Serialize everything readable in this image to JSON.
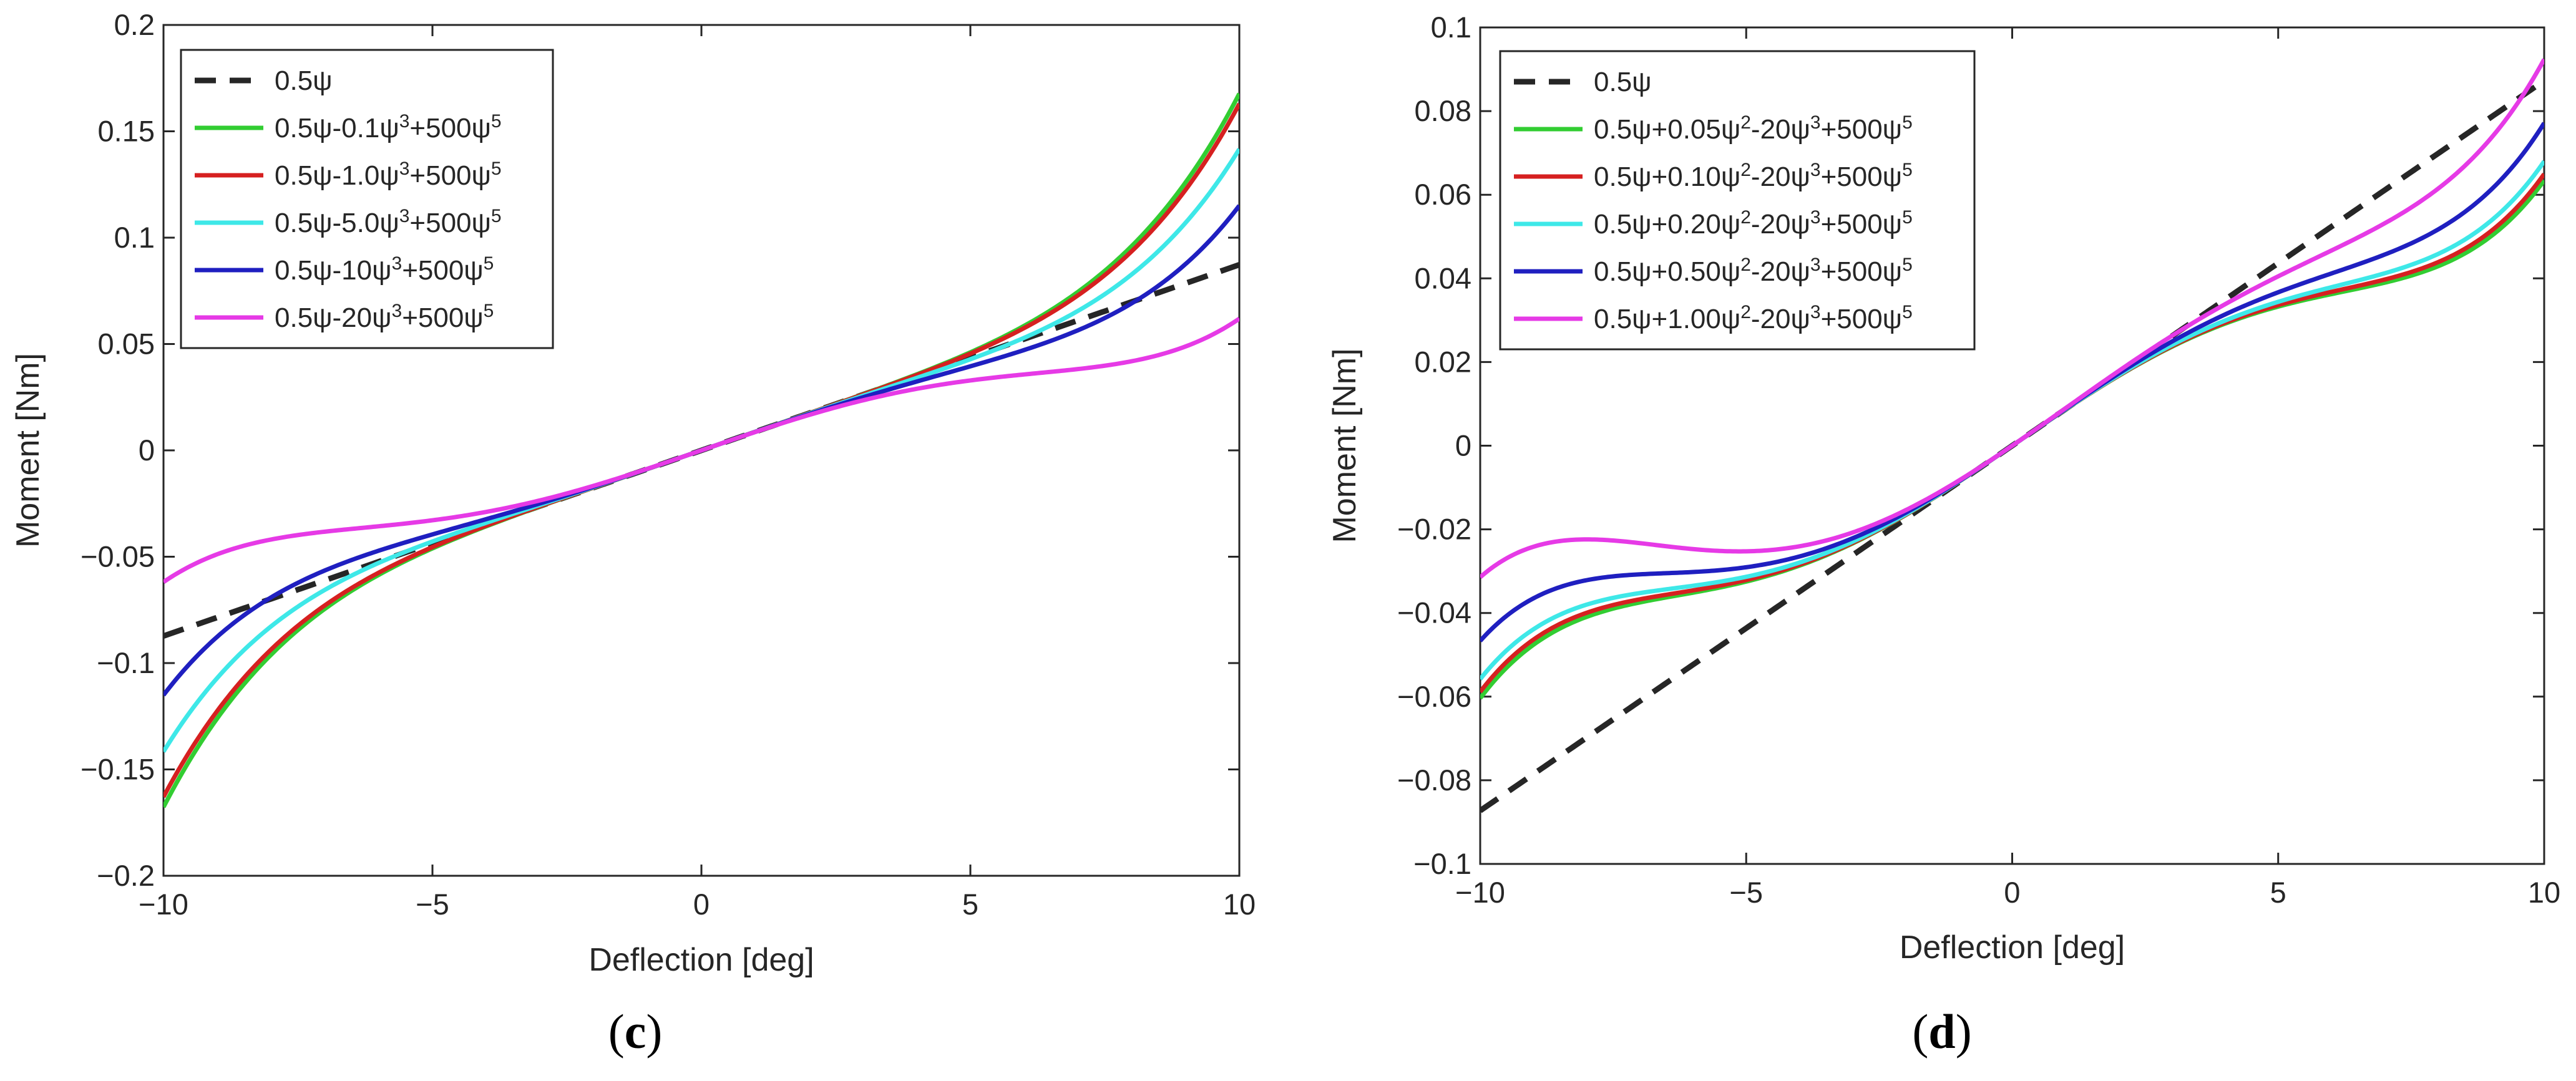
{
  "chart_data": [
    {
      "type": "line",
      "panel_label": "c",
      "xlabel": "Deflection [deg]",
      "ylabel": "Moment [Nm]",
      "xlim": [
        -10,
        10
      ],
      "ylim": [
        -0.2,
        0.2
      ],
      "xticks": [
        -10,
        -5,
        0,
        5,
        10
      ],
      "xtick_labels": [
        "−10",
        "−5",
        "0",
        "5",
        "10"
      ],
      "yticks": [
        -0.2,
        -0.15,
        -0.1,
        -0.05,
        0,
        0.05,
        0.1,
        0.15,
        0.2
      ],
      "ytick_labels": [
        "−0.2",
        "−0.15",
        "−0.1",
        "−0.05",
        "0",
        "0.05",
        "0.1",
        "0.15",
        "0.2"
      ],
      "legend_position": "top-left",
      "series": [
        {
          "name": "0.5ψ",
          "label_parts": [
            "0.5ψ"
          ],
          "color": "#262626",
          "dashed": true,
          "a": 0.5,
          "b": 0,
          "c": 0,
          "d": 0
        },
        {
          "name": "0.5ψ-0.1ψ^3+500ψ^5",
          "label_parts": [
            "0.5ψ-0.1ψ",
            "3",
            "+500ψ",
            "5"
          ],
          "color": "#32cd32",
          "dashed": false,
          "a": 0.5,
          "b": 0,
          "c": -0.1,
          "d": 500
        },
        {
          "name": "0.5ψ-1.0ψ^3+500ψ^5",
          "label_parts": [
            "0.5ψ-1.0ψ",
            "3",
            "+500ψ",
            "5"
          ],
          "color": "#d62020",
          "dashed": false,
          "a": 0.5,
          "b": 0,
          "c": -1.0,
          "d": 500
        },
        {
          "name": "0.5ψ-5.0ψ^3+500ψ^5",
          "label_parts": [
            "0.5ψ-5.0ψ",
            "3",
            "+500ψ",
            "5"
          ],
          "color": "#3ee8e8",
          "dashed": false,
          "a": 0.5,
          "b": 0,
          "c": -5.0,
          "d": 500
        },
        {
          "name": "0.5ψ-10ψ^3+500ψ^5",
          "label_parts": [
            "0.5ψ-10ψ",
            "3",
            "+500ψ",
            "5"
          ],
          "color": "#1f1fc0",
          "dashed": false,
          "a": 0.5,
          "b": 0,
          "c": -10,
          "d": 500
        },
        {
          "name": "0.5ψ-20ψ^3+500ψ^5",
          "label_parts": [
            "0.5ψ-20ψ",
            "3",
            "+500ψ",
            "5"
          ],
          "color": "#e63ae6",
          "dashed": false,
          "a": 0.5,
          "b": 0,
          "c": -20,
          "d": 500
        }
      ]
    },
    {
      "type": "line",
      "panel_label": "d",
      "xlabel": "Deflection [deg]",
      "ylabel": "Moment [Nm]",
      "xlim": [
        -10,
        10
      ],
      "ylim": [
        -0.1,
        0.1
      ],
      "xticks": [
        -10,
        -5,
        0,
        5,
        10
      ],
      "xtick_labels": [
        "−10",
        "−5",
        "0",
        "5",
        "10"
      ],
      "yticks": [
        -0.1,
        -0.08,
        -0.06,
        -0.04,
        -0.02,
        0,
        0.02,
        0.04,
        0.06,
        0.08,
        0.1
      ],
      "ytick_labels": [
        "−0.1",
        "−0.08",
        "−0.06",
        "−0.04",
        "−0.02",
        "0",
        "0.02",
        "0.04",
        "0.06",
        "0.08",
        "0.1"
      ],
      "legend_position": "top-left",
      "series": [
        {
          "name": "0.5ψ",
          "label_parts": [
            "0.5ψ"
          ],
          "color": "#262626",
          "dashed": true,
          "a": 0.5,
          "b": 0,
          "c": 0,
          "d": 0
        },
        {
          "name": "0.5ψ+0.05ψ^2-20ψ^3+500ψ^5",
          "label_parts": [
            "0.5ψ+0.05ψ",
            "2",
            "-20ψ",
            "3",
            "+500ψ",
            "5"
          ],
          "color": "#32cd32",
          "dashed": false,
          "a": 0.5,
          "b": 0.05,
          "c": -20,
          "d": 500
        },
        {
          "name": "0.5ψ+0.10ψ^2-20ψ^3+500ψ^5",
          "label_parts": [
            "0.5ψ+0.10ψ",
            "2",
            "-20ψ",
            "3",
            "+500ψ",
            "5"
          ],
          "color": "#d62020",
          "dashed": false,
          "a": 0.5,
          "b": 0.1,
          "c": -20,
          "d": 500
        },
        {
          "name": "0.5ψ+0.20ψ^2-20ψ^3+500ψ^5",
          "label_parts": [
            "0.5ψ+0.20ψ",
            "2",
            "-20ψ",
            "3",
            "+500ψ",
            "5"
          ],
          "color": "#3ee8e8",
          "dashed": false,
          "a": 0.5,
          "b": 0.2,
          "c": -20,
          "d": 500
        },
        {
          "name": "0.5ψ+0.50ψ^2-20ψ^3+500ψ^5",
          "label_parts": [
            "0.5ψ+0.50ψ",
            "2",
            "-20ψ",
            "3",
            "+500ψ",
            "5"
          ],
          "color": "#1f1fc0",
          "dashed": false,
          "a": 0.5,
          "b": 0.5,
          "c": -20,
          "d": 500
        },
        {
          "name": "0.5ψ+1.00ψ^2-20ψ^3+500ψ^5",
          "label_parts": [
            "0.5ψ+1.00ψ",
            "2",
            "-20ψ",
            "3",
            "+500ψ",
            "5"
          ],
          "color": "#e63ae6",
          "dashed": false,
          "a": 0.5,
          "b": 1.0,
          "c": -20,
          "d": 500
        }
      ]
    }
  ]
}
